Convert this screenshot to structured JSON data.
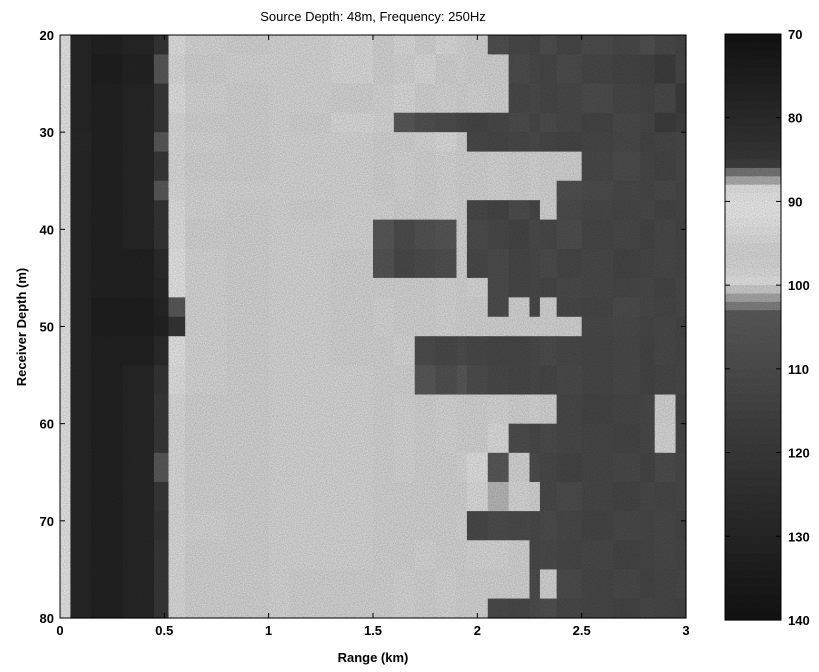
{
  "chart_data": {
    "type": "heatmap",
    "title": "Source Depth: 48m, Frequency: 250Hz",
    "xlabel": "Range (km)",
    "ylabel": "Receiver Depth (m)",
    "xlim": [
      0,
      3
    ],
    "ylim": [
      20,
      80
    ],
    "y_reversed": true,
    "x_ticks": [
      "0",
      "0.5",
      "1",
      "1.5",
      "2",
      "2.5",
      "3"
    ],
    "x_tick_values": [
      0,
      0.5,
      1,
      1.5,
      2,
      2.5,
      3
    ],
    "y_ticks": [
      "20",
      "30",
      "40",
      "50",
      "60",
      "70",
      "80"
    ],
    "y_tick_values": [
      20,
      30,
      40,
      50,
      60,
      70,
      80
    ],
    "colorbar": {
      "min": 70,
      "max": 140,
      "ticks": [
        "70",
        "80",
        "90",
        "100",
        "110",
        "120",
        "130",
        "140"
      ],
      "tick_values": [
        70,
        80,
        90,
        100,
        110,
        120,
        130,
        140
      ],
      "colormap": "grayscale banded: dark (70-87), white (88-101), dark (102-140)"
    },
    "x_edges": [
      0,
      0.05,
      0.15,
      0.3,
      0.45,
      0.52,
      0.6,
      0.8,
      1.0,
      1.1,
      1.3,
      1.5,
      1.6,
      1.7,
      1.8,
      1.9,
      1.95,
      2.05,
      2.15,
      2.25,
      2.3,
      2.38,
      2.5,
      2.65,
      2.78,
      2.85,
      2.95,
      3.0
    ],
    "y_edges": [
      20,
      22,
      25,
      28,
      30,
      32,
      35,
      37,
      39,
      42,
      45,
      47,
      49,
      51,
      54,
      57,
      60,
      63,
      66,
      69,
      72,
      75,
      78,
      80
    ],
    "tl_db": [
      [
        92,
        78,
        76,
        78,
        84,
        93,
        95,
        96,
        95,
        95,
        94,
        97,
        94,
        97,
        94,
        95,
        96,
        108,
        112,
        113,
        109,
        113,
        110,
        112,
        108,
        112,
        114
      ],
      [
        92,
        78,
        75,
        77,
        86,
        94,
        96,
        95,
        95,
        95,
        94,
        96,
        95,
        94,
        96,
        95,
        96,
        96,
        110,
        112,
        113,
        110,
        113,
        114,
        115,
        118,
        113
      ],
      [
        92,
        78,
        76,
        78,
        85,
        93,
        95,
        96,
        95,
        95,
        96,
        95,
        94,
        96,
        95,
        96,
        95,
        96,
        112,
        111,
        113,
        112,
        110,
        113,
        114,
        112,
        118
      ],
      [
        92,
        78,
        76,
        78,
        85,
        94,
        96,
        96,
        95,
        96,
        94,
        98,
        104,
        108,
        110,
        112,
        114,
        112,
        110,
        113,
        110,
        112,
        114,
        111,
        113,
        118,
        116
      ],
      [
        92,
        79,
        76,
        78,
        86,
        94,
        95,
        96,
        95,
        95,
        95,
        97,
        96,
        98,
        99,
        96,
        112,
        113,
        112,
        111,
        113,
        114,
        113,
        112,
        114,
        113,
        112
      ],
      [
        92,
        78,
        76,
        78,
        85,
        94,
        96,
        96,
        95,
        95,
        95,
        96,
        95,
        96,
        95,
        96,
        96,
        95,
        96,
        95,
        96,
        96,
        112,
        110,
        113,
        114,
        112
      ],
      [
        92,
        78,
        76,
        78,
        86,
        94,
        95,
        95,
        95,
        95,
        95,
        96,
        95,
        96,
        95,
        96,
        96,
        95,
        96,
        95,
        96,
        108,
        110,
        112,
        113,
        111,
        113
      ],
      [
        92,
        78,
        76,
        78,
        84,
        93,
        95,
        96,
        95,
        96,
        95,
        98,
        97,
        96,
        95,
        96,
        112,
        114,
        110,
        113,
        96,
        110,
        112,
        113,
        112,
        114,
        113
      ],
      [
        92,
        78,
        76,
        78,
        84,
        93,
        96,
        96,
        95,
        95,
        95,
        104,
        110,
        107,
        105,
        97,
        110,
        112,
        114,
        111,
        112,
        109,
        113,
        112,
        114,
        112,
        114
      ],
      [
        92,
        78,
        76,
        76,
        80,
        92,
        95,
        96,
        95,
        95,
        96,
        106,
        112,
        110,
        108,
        96,
        112,
        110,
        113,
        112,
        110,
        113,
        112,
        114,
        113,
        112,
        113
      ],
      [
        92,
        78,
        76,
        76,
        79,
        90,
        95,
        96,
        95,
        95,
        96,
        97,
        96,
        96,
        95,
        96,
        98,
        110,
        113,
        112,
        113,
        111,
        112,
        113,
        112,
        114,
        112
      ],
      [
        92,
        78,
        75,
        75,
        78,
        86,
        95,
        96,
        95,
        95,
        96,
        95,
        96,
        96,
        95,
        96,
        96,
        110,
        96,
        112,
        97,
        112,
        113,
        110,
        112,
        113,
        112
      ],
      [
        92,
        78,
        75,
        75,
        77,
        84,
        95,
        96,
        95,
        95,
        96,
        95,
        96,
        96,
        95,
        96,
        96,
        96,
        96,
        96,
        96,
        96,
        112,
        111,
        113,
        112,
        114
      ],
      [
        92,
        78,
        76,
        76,
        80,
        92,
        95,
        96,
        95,
        95,
        96,
        96,
        98,
        110,
        112,
        110,
        112,
        113,
        113,
        112,
        110,
        112,
        113,
        112,
        114,
        112,
        113
      ],
      [
        92,
        78,
        76,
        78,
        84,
        93,
        95,
        96,
        95,
        95,
        95,
        96,
        96,
        104,
        108,
        104,
        110,
        112,
        113,
        112,
        113,
        111,
        113,
        112,
        114,
        113,
        112
      ],
      [
        92,
        78,
        76,
        78,
        85,
        94,
        96,
        96,
        95,
        95,
        95,
        96,
        95,
        96,
        95,
        96,
        96,
        95,
        96,
        95,
        96,
        112,
        114,
        113,
        112,
        96,
        114
      ],
      [
        92,
        78,
        76,
        78,
        85,
        94,
        96,
        96,
        95,
        95,
        95,
        96,
        95,
        96,
        95,
        96,
        97,
        99,
        110,
        112,
        110,
        112,
        113,
        114,
        112,
        95,
        113
      ],
      [
        92,
        78,
        76,
        78,
        86,
        94,
        96,
        96,
        95,
        95,
        95,
        96,
        95,
        96,
        96,
        98,
        100,
        104,
        96,
        110,
        112,
        114,
        113,
        112,
        114,
        110,
        112
      ],
      [
        92,
        78,
        76,
        78,
        85,
        94,
        96,
        96,
        95,
        95,
        95,
        96,
        96,
        97,
        96,
        97,
        99,
        101,
        98,
        96,
        112,
        110,
        113,
        114,
        112,
        113,
        112
      ],
      [
        92,
        78,
        76,
        78,
        84,
        94,
        95,
        96,
        95,
        95,
        95,
        96,
        96,
        96,
        96,
        95,
        112,
        110,
        111,
        112,
        110,
        112,
        114,
        112,
        113,
        112,
        114
      ],
      [
        92,
        78,
        76,
        78,
        85,
        94,
        96,
        96,
        95,
        95,
        95,
        96,
        96,
        98,
        96,
        97,
        98,
        98,
        96,
        112,
        111,
        113,
        112,
        114,
        113,
        112,
        113
      ],
      [
        92,
        78,
        76,
        78,
        85,
        94,
        96,
        96,
        95,
        96,
        97,
        96,
        95,
        96,
        95,
        96,
        96,
        97,
        96,
        110,
        96,
        110,
        113,
        112,
        114,
        113,
        112
      ],
      [
        92,
        78,
        76,
        78,
        85,
        94,
        96,
        96,
        95,
        96,
        96,
        96,
        95,
        96,
        95,
        97,
        96,
        111,
        112,
        110,
        108,
        112,
        113,
        114,
        112,
        113,
        114
      ]
    ]
  }
}
